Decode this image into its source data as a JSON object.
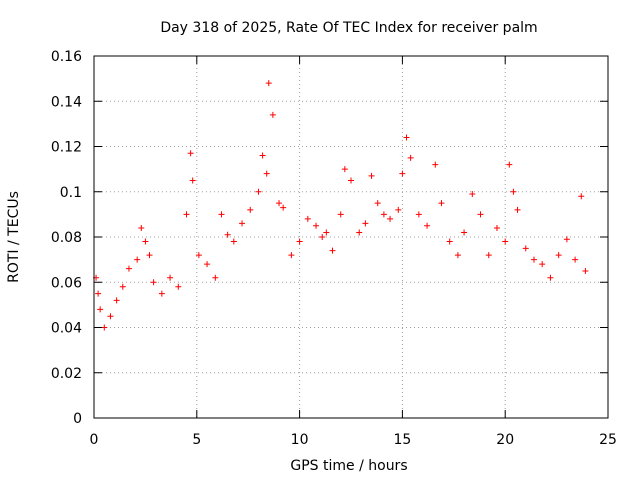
{
  "chart_data": {
    "type": "scatter",
    "title": "Day 318 of 2025, Rate Of TEC Index for receiver palm",
    "xlabel": "GPS time / hours",
    "ylabel": "ROTI / TECUs",
    "xlim": [
      0,
      25
    ],
    "ylim": [
      0,
      0.16
    ],
    "xticks": [
      0,
      5,
      10,
      15,
      20,
      25
    ],
    "xtick_labels": [
      "0",
      "5",
      "10",
      "15",
      "20",
      "25"
    ],
    "yticks": [
      0,
      0.02,
      0.04,
      0.06,
      0.08,
      0.1,
      0.12,
      0.14,
      0.16
    ],
    "ytick_labels": [
      "0",
      "0.02",
      "0.04",
      "0.06",
      "0.08",
      "0.1",
      "0.12",
      "0.14",
      "0.16"
    ],
    "grid": true,
    "marker": "+",
    "marker_color": "#ff0000",
    "series": [
      {
        "name": "ROTI",
        "x": [
          0.1,
          0.2,
          0.3,
          0.5,
          0.8,
          1.1,
          1.4,
          1.7,
          2.1,
          2.3,
          2.5,
          2.7,
          2.9,
          3.3,
          3.7,
          4.1,
          4.5,
          4.7,
          4.8,
          5.1,
          5.5,
          5.9,
          6.2,
          6.5,
          6.8,
          7.2,
          7.6,
          8.0,
          8.2,
          8.4,
          8.5,
          8.7,
          9.0,
          9.2,
          9.6,
          10.0,
          10.4,
          10.8,
          11.1,
          11.3,
          11.6,
          12.0,
          12.2,
          12.5,
          12.9,
          13.2,
          13.5,
          13.8,
          14.1,
          14.4,
          14.8,
          15.0,
          15.2,
          15.4,
          15.8,
          16.2,
          16.6,
          16.9,
          17.3,
          17.7,
          18.0,
          18.4,
          18.8,
          19.2,
          19.6,
          20.0,
          20.2,
          20.4,
          20.6,
          21.0,
          21.4,
          21.8,
          22.2,
          22.6,
          23.0,
          23.4,
          23.7,
          23.9
        ],
        "y": [
          0.062,
          0.055,
          0.048,
          0.04,
          0.045,
          0.052,
          0.058,
          0.066,
          0.07,
          0.084,
          0.078,
          0.072,
          0.06,
          0.055,
          0.062,
          0.058,
          0.09,
          0.117,
          0.105,
          0.072,
          0.068,
          0.062,
          0.09,
          0.081,
          0.078,
          0.086,
          0.092,
          0.1,
          0.116,
          0.108,
          0.148,
          0.134,
          0.095,
          0.093,
          0.072,
          0.078,
          0.088,
          0.085,
          0.08,
          0.082,
          0.074,
          0.09,
          0.11,
          0.105,
          0.082,
          0.086,
          0.107,
          0.095,
          0.09,
          0.088,
          0.092,
          0.108,
          0.124,
          0.115,
          0.09,
          0.085,
          0.112,
          0.095,
          0.078,
          0.072,
          0.082,
          0.099,
          0.09,
          0.072,
          0.084,
          0.078,
          0.112,
          0.1,
          0.092,
          0.075,
          0.07,
          0.068,
          0.062,
          0.072,
          0.079,
          0.07,
          0.098,
          0.065
        ]
      }
    ]
  }
}
